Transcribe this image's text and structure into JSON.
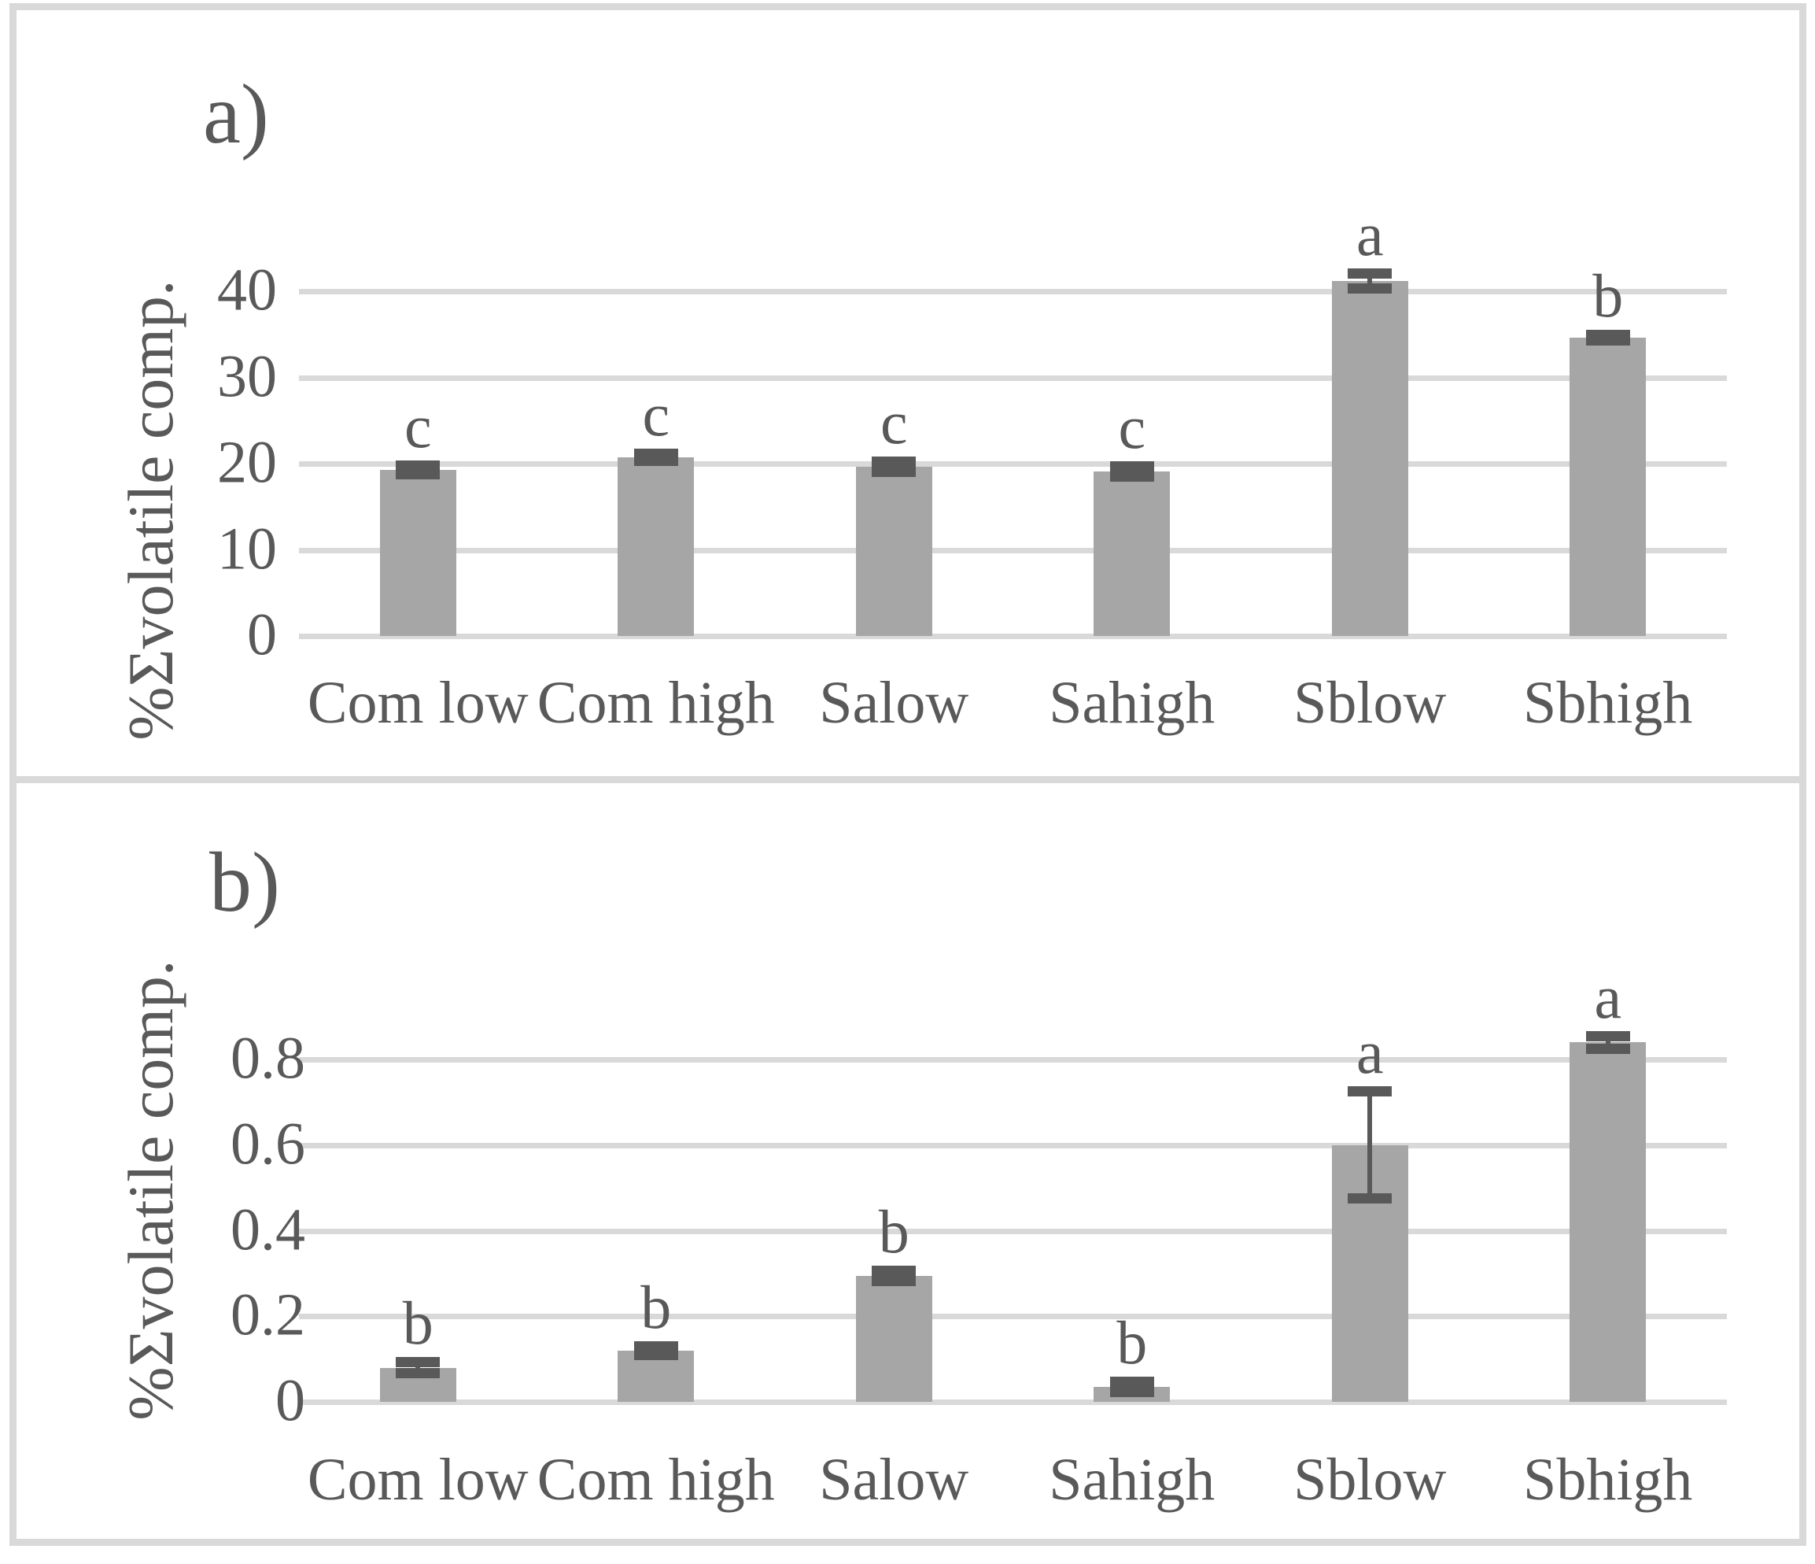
{
  "figure": {
    "kind": "two-panel bar chart figure",
    "background": "#ffffff"
  },
  "colors": {
    "bar": "#a6a6a6",
    "error": "#595959",
    "grid": "#d9d9d9",
    "text": "#595959",
    "frame": "#d9d9d9"
  },
  "chart_data": [
    {
      "type": "bar",
      "panel_label": "a)",
      "title": "",
      "xlabel": "",
      "ylabel": "%Σvolatile comp.",
      "categories": [
        "Com low",
        "Com high",
        "Salow",
        "Sahigh",
        "Sblow",
        "Sbhigh"
      ],
      "values": [
        19.3,
        20.7,
        19.6,
        19.1,
        41.2,
        34.6
      ],
      "errors": [
        0.5,
        0.4,
        0.6,
        0.6,
        0.9,
        0.3
      ],
      "sig_letters": [
        "c",
        "c",
        "c",
        "c",
        "a",
        "b"
      ],
      "yticks": [
        0,
        10,
        20,
        30,
        40
      ],
      "ytick_labels": [
        "0",
        "10",
        "20",
        "30",
        "40"
      ],
      "ylim": [
        0,
        44
      ],
      "grid": true,
      "legend": "none"
    },
    {
      "type": "bar",
      "panel_label": "b)",
      "title": "",
      "xlabel": "",
      "ylabel": "%Σvolatile comp.",
      "categories": [
        "Com low",
        "Com high",
        "Salow",
        "Sahigh",
        "Sblow",
        "Sbhigh"
      ],
      "values": [
        0.08,
        0.12,
        0.295,
        0.035,
        0.6,
        0.84
      ],
      "errors": [
        0.012,
        0.01,
        0.012,
        0.012,
        0.125,
        0.015
      ],
      "sig_letters": [
        "b",
        "b",
        "b",
        "b",
        "a",
        "a"
      ],
      "yticks": [
        0,
        0.2,
        0.4,
        0.6,
        0.8
      ],
      "ytick_labels": [
        "0",
        "0.2",
        "0.4",
        "0.6",
        "0.8"
      ],
      "ylim": [
        0,
        0.95
      ],
      "grid": true,
      "legend": "none"
    }
  ]
}
